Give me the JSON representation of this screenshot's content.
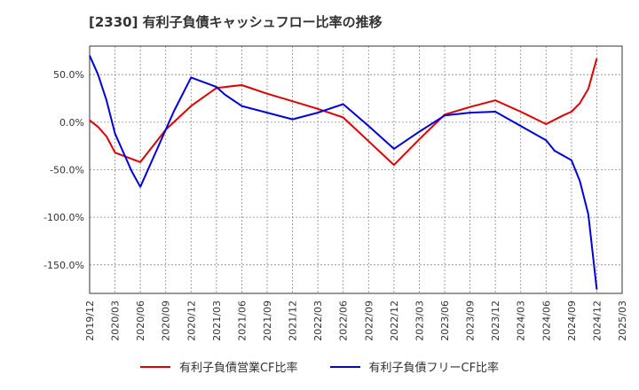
{
  "chart_data": {
    "type": "line",
    "title": "[2330]  有利子負債キャッシュフロー比率の推移",
    "x": [
      "2019/12",
      "2020/03",
      "2020/06",
      "2020/09",
      "2020/12",
      "2021/03",
      "2021/06",
      "2021/09",
      "2021/12",
      "2022/03",
      "2022/06",
      "2022/09",
      "2022/12",
      "2023/03",
      "2023/06",
      "2023/09",
      "2023/12",
      "2024/03",
      "2024/06",
      "2024/09",
      "2024/12",
      "2025/03"
    ],
    "ylim": [
      -180,
      80
    ],
    "yticks": [
      50,
      0,
      -50,
      -100,
      -150
    ],
    "ytick_labels": [
      "50.0%",
      "0.0%",
      "-50.0%",
      "-100.0%",
      "-150.0%"
    ],
    "grid": true,
    "legend_position": "bottom",
    "series": [
      {
        "name": "有利子負債営業CF比率",
        "color": "#dd0000",
        "points": [
          [
            "2019/12",
            2
          ],
          [
            "2020/01",
            -5
          ],
          [
            "2020/02",
            -15
          ],
          [
            "2020/03",
            -32
          ],
          [
            "2020/06",
            -42
          ],
          [
            "2020/09",
            -8
          ],
          [
            "2020/12",
            17
          ],
          [
            "2021/03",
            36
          ],
          [
            "2021/06",
            39
          ],
          [
            "2021/09",
            30
          ],
          [
            "2021/12",
            22
          ],
          [
            "2022/03",
            14
          ],
          [
            "2022/06",
            5
          ],
          [
            "2022/09",
            -20
          ],
          [
            "2022/12",
            -45
          ],
          [
            "2023/03",
            -18
          ],
          [
            "2023/06",
            8
          ],
          [
            "2023/09",
            16
          ],
          [
            "2023/12",
            23
          ],
          [
            "2024/03",
            11
          ],
          [
            "2024/06",
            -2
          ],
          [
            "2024/08",
            7
          ],
          [
            "2024/09",
            11
          ],
          [
            "2024/10",
            20
          ],
          [
            "2024/11",
            35
          ],
          [
            "2024/12",
            67
          ]
        ]
      },
      {
        "name": "有利子負債フリーCF比率",
        "color": "#0000dd",
        "points": [
          [
            "2019/12",
            70
          ],
          [
            "2020/01",
            50
          ],
          [
            "2020/02",
            23
          ],
          [
            "2020/03",
            -12
          ],
          [
            "2020/05",
            -52
          ],
          [
            "2020/06",
            -68
          ],
          [
            "2020/08",
            -28
          ],
          [
            "2020/09",
            -8
          ],
          [
            "2020/10",
            12
          ],
          [
            "2020/12",
            47
          ],
          [
            "2021/03",
            37
          ],
          [
            "2021/04",
            29
          ],
          [
            "2021/06",
            17
          ],
          [
            "2021/09",
            10
          ],
          [
            "2021/12",
            3
          ],
          [
            "2022/03",
            10
          ],
          [
            "2022/06",
            19
          ],
          [
            "2022/09",
            -4
          ],
          [
            "2022/12",
            -28
          ],
          [
            "2023/03",
            -10
          ],
          [
            "2023/06",
            7
          ],
          [
            "2023/09",
            10
          ],
          [
            "2023/12",
            11
          ],
          [
            "2024/03",
            -4
          ],
          [
            "2024/06",
            -19
          ],
          [
            "2024/07",
            -30
          ],
          [
            "2024/09",
            -40
          ],
          [
            "2024/10",
            -62
          ],
          [
            "2024/11",
            -97
          ],
          [
            "2024/12",
            -176
          ]
        ]
      }
    ]
  }
}
